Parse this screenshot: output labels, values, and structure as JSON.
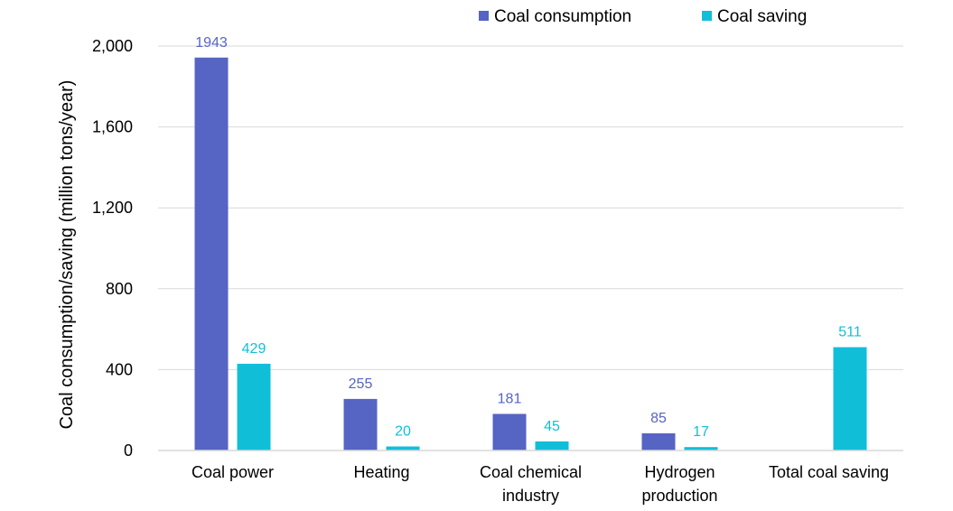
{
  "chart_data": {
    "type": "bar",
    "title": "",
    "xlabel": "",
    "ylabel": "Coal consumption/saving (million tons/year)",
    "ylim": [
      0,
      2000
    ],
    "yticks": [
      0,
      400,
      800,
      1200,
      1600,
      2000
    ],
    "ytick_labels": [
      "0",
      "400",
      "800",
      "1,200",
      "1,600",
      "2,000"
    ],
    "grid": "horizontal",
    "legend_position": "top",
    "categories": [
      [
        "Coal power"
      ],
      [
        "Heating"
      ],
      [
        "Coal chemical",
        "industry"
      ],
      [
        "Hydrogen",
        "production"
      ],
      [
        "Total coal saving"
      ]
    ],
    "series": [
      {
        "name": "Coal consumption",
        "color": "#5664C4",
        "values": [
          1943,
          255,
          181,
          85,
          null
        ],
        "labels": [
          "1943",
          "255",
          "181",
          "85",
          ""
        ]
      },
      {
        "name": "Coal saving",
        "color": "#11BED8",
        "values": [
          429,
          20,
          45,
          17,
          511
        ],
        "labels": [
          "429",
          "20",
          "45",
          "17",
          "511"
        ]
      }
    ]
  }
}
